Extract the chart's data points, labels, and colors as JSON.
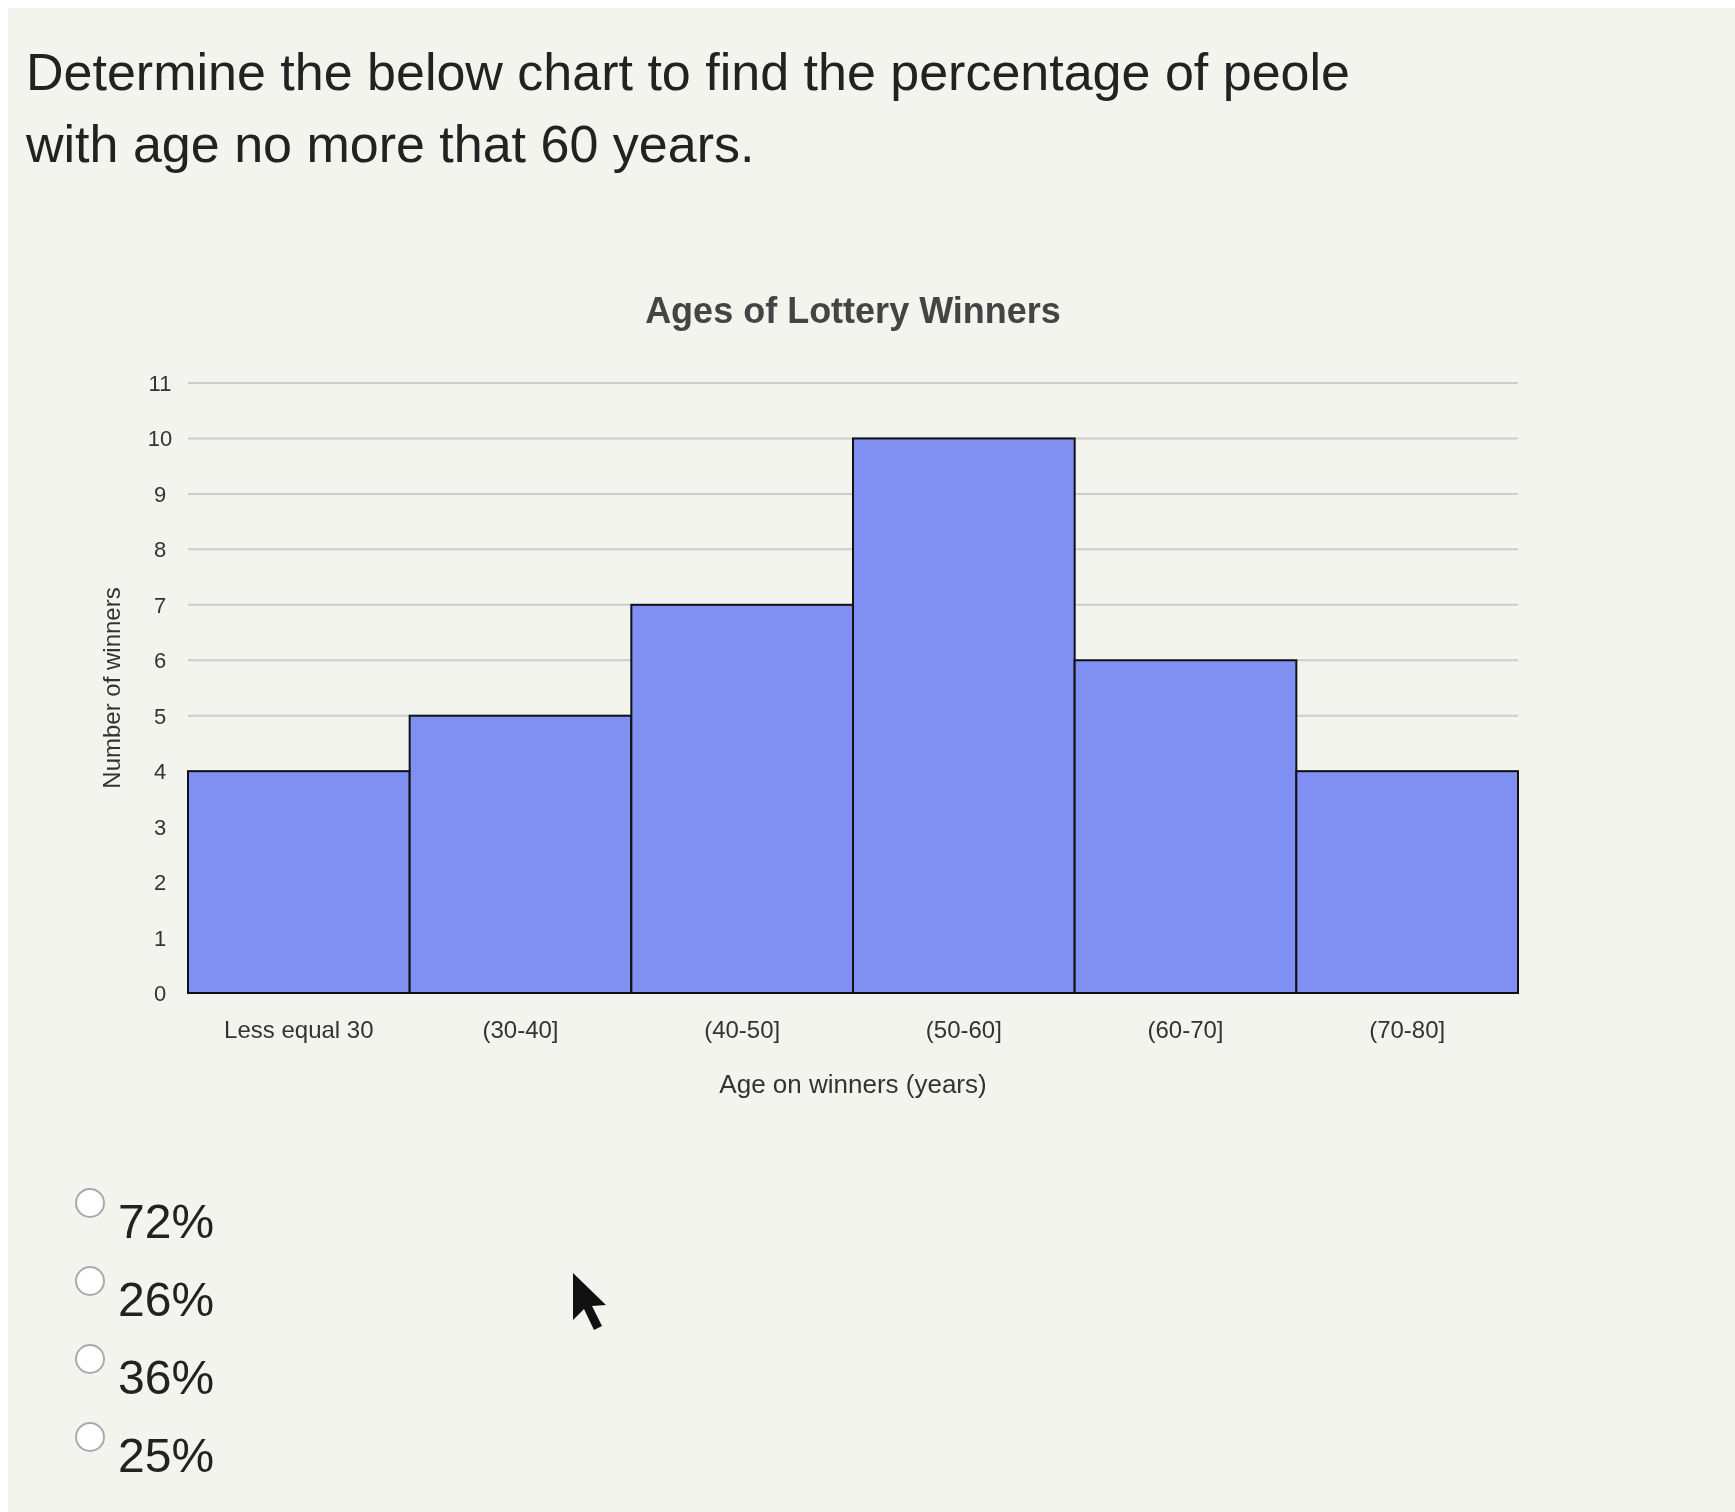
{
  "chart_data": {
    "type": "bar",
    "title": "Ages of Lottery Winners",
    "xlabel": "Age on winners (years)",
    "ylabel": "Number of winners",
    "categories": [
      "Less equal 30",
      "(30-40]",
      "(40-50]",
      "(50-60]",
      "(60-70]",
      "(70-80]"
    ],
    "values": [
      4,
      5,
      7,
      10,
      6,
      4
    ],
    "color": "#7f8ff2",
    "ylim": [
      0,
      11
    ],
    "yticks": [
      0,
      1,
      2,
      3,
      4,
      5,
      6,
      7,
      8,
      9,
      10,
      11
    ],
    "grid": "y",
    "annotations": [
      "Determine the below chart to find the percentage of peole with age no more that 60 years.",
      "72%",
      "26%",
      "36%",
      "25%"
    ]
  }
}
